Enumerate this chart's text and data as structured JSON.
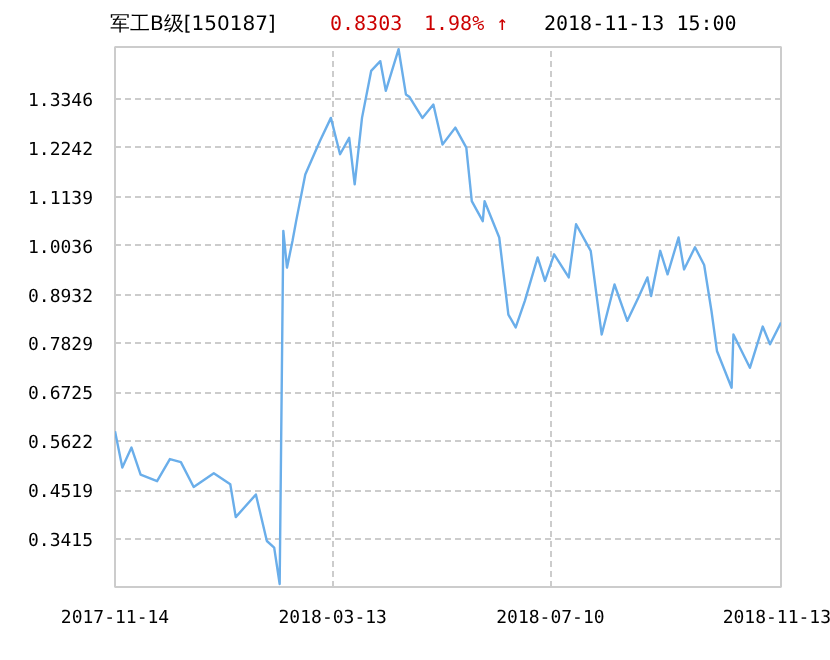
{
  "chart_data": {
    "type": "line",
    "title": "军工B级[150187]",
    "annotations": [
      "0.8303",
      "1.98% ↑",
      "2018-11-13 15:00"
    ],
    "x": [
      "2017-11-14",
      "2017-11-18",
      "2017-11-23",
      "2017-11-28",
      "2017-12-07",
      "2017-12-14",
      "2017-12-20",
      "2017-12-27",
      "2018-01-07",
      "2018-01-16",
      "2018-01-19",
      "2018-01-30",
      "2018-02-05",
      "2018-02-09",
      "2018-02-12",
      "2018-02-14",
      "2018-02-16",
      "2018-02-19",
      "2018-02-21",
      "2018-02-26",
      "2018-03-06",
      "2018-03-12",
      "2018-03-17",
      "2018-03-22",
      "2018-03-25",
      "2018-03-29",
      "2018-04-03",
      "2018-04-08",
      "2018-04-11",
      "2018-04-18",
      "2018-04-22",
      "2018-04-24",
      "2018-05-01",
      "2018-05-07",
      "2018-05-12",
      "2018-05-19",
      "2018-05-25",
      "2018-05-28",
      "2018-06-03",
      "2018-06-04",
      "2018-06-12",
      "2018-06-17",
      "2018-06-21",
      "2018-06-26",
      "2018-07-03",
      "2018-07-07",
      "2018-07-12",
      "2018-07-20",
      "2018-07-24",
      "2018-08-01",
      "2018-08-07",
      "2018-08-14",
      "2018-08-21",
      "2018-08-27",
      "2018-09-01",
      "2018-09-03",
      "2018-09-08",
      "2018-09-12",
      "2018-09-18",
      "2018-09-21",
      "2018-09-27",
      "2018-10-02",
      "2018-10-06",
      "2018-10-09",
      "2018-10-17",
      "2018-10-18",
      "2018-10-27",
      "2018-11-03",
      "2018-11-07",
      "2018-11-13"
    ],
    "series": [
      {
        "color": "#6aaeea",
        "values": [
          0.585,
          0.503,
          0.548,
          0.487,
          0.472,
          0.522,
          0.515,
          0.459,
          0.49,
          0.465,
          0.391,
          0.442,
          0.337,
          0.322,
          0.24,
          1.037,
          0.954,
          1.014,
          1.059,
          1.164,
          1.24,
          1.292,
          1.21,
          1.247,
          1.142,
          1.292,
          1.398,
          1.42,
          1.353,
          1.447,
          1.345,
          1.339,
          1.292,
          1.322,
          1.232,
          1.27,
          1.225,
          1.104,
          1.059,
          1.104,
          1.022,
          0.848,
          0.819,
          0.879,
          0.977,
          0.924,
          0.984,
          0.932,
          1.052,
          0.992,
          0.803,
          0.916,
          0.834,
          0.886,
          0.932,
          0.89,
          0.992,
          0.939,
          1.022,
          0.95,
          1.0,
          0.96,
          0.856,
          0.766,
          0.683,
          0.803,
          0.728,
          0.821,
          0.781,
          0.83
        ]
      }
    ],
    "xlim": [
      "2017-11-14",
      "2018-11-13"
    ],
    "xticks": [
      {
        "value": "2017-11-14",
        "label": "2017-11-14"
      },
      {
        "value": "2018-03-13",
        "label": "2018-03-13"
      },
      {
        "value": "2018-07-10",
        "label": "2018-07-10"
      },
      {
        "value": "2018-11-13",
        "label": "2018-11-13"
      }
    ],
    "ylim": [
      0.2332,
      1.452
    ],
    "yticks": [
      0.3415,
      0.4519,
      0.5622,
      0.6725,
      0.7829,
      0.8932,
      1.0036,
      1.1139,
      1.2242,
      1.3346
    ],
    "grid": true,
    "marker": "none",
    "line_style": "solid"
  }
}
